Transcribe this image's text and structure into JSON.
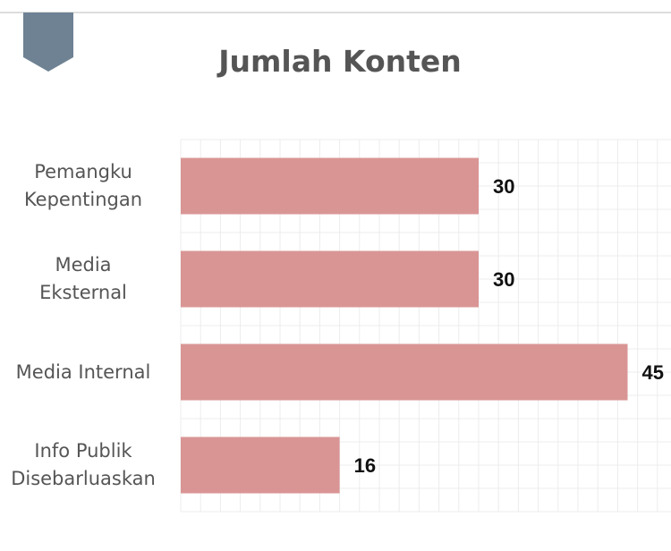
{
  "chart_data": {
    "type": "barh",
    "title": "Jumlah Konten",
    "categories": [
      "Pemangku\nKepentingan",
      "Media\nEksternal",
      "Media Internal",
      "Info Publik\nDisebarluaskan"
    ],
    "values": [
      30,
      30,
      45,
      16
    ],
    "color": "#d99594",
    "xlim": [
      0,
      50
    ],
    "xticks": [
      0,
      2,
      4,
      6,
      8,
      10,
      12,
      14,
      16,
      18,
      20,
      22,
      24,
      26,
      28,
      30,
      32,
      34,
      36,
      38,
      40,
      42,
      44,
      46,
      48,
      50
    ],
    "grid": true
  }
}
